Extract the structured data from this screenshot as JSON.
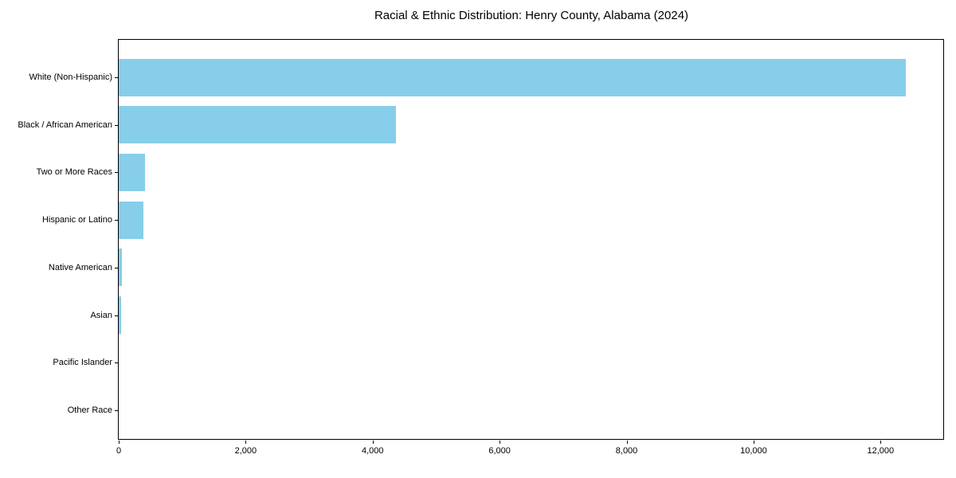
{
  "chart_data": {
    "type": "bar",
    "orientation": "horizontal",
    "title": "Racial & Ethnic Distribution: Henry County, Alabama (2024)",
    "categories": [
      "White (Non-Hispanic)",
      "Black / African American",
      "Two or More Races",
      "Hispanic or Latino",
      "Native American",
      "Asian",
      "Pacific Islander",
      "Other Race"
    ],
    "values": [
      12400,
      4370,
      420,
      390,
      50,
      35,
      0,
      0
    ],
    "xlabel": "",
    "ylabel": "",
    "xlim": [
      0,
      13000
    ],
    "x_ticks": [
      0,
      2000,
      4000,
      6000,
      8000,
      10000,
      12000
    ],
    "x_tick_labels": [
      "0",
      "2,000",
      "4,000",
      "6,000",
      "8,000",
      "10,000",
      "12,000"
    ],
    "bar_color": "#87CEEB",
    "grid": false,
    "legend": null,
    "categories_order": "largest value at top (inverted y-axis)"
  }
}
